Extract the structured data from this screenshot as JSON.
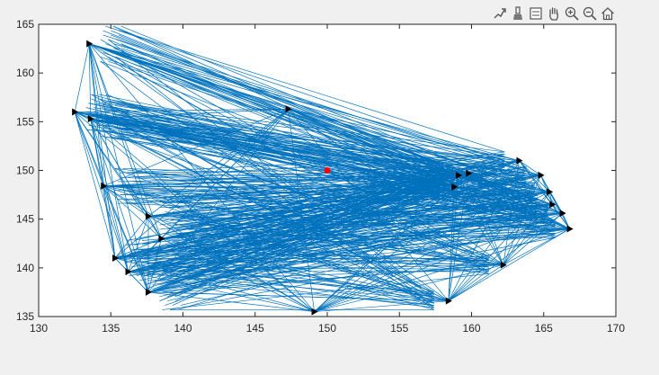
{
  "toolbar": {
    "buttons": [
      {
        "name": "export-icon"
      },
      {
        "name": "brush-icon"
      },
      {
        "name": "datatip-icon"
      },
      {
        "name": "pan-hand-icon"
      },
      {
        "name": "zoom-in-icon"
      },
      {
        "name": "zoom-out-icon"
      },
      {
        "name": "home-icon"
      }
    ]
  },
  "chart_data": {
    "type": "network-plot",
    "title": "",
    "xlabel": "",
    "ylabel": "",
    "xlim": [
      130,
      170
    ],
    "ylim": [
      135,
      165
    ],
    "xticks": [
      130,
      135,
      140,
      145,
      150,
      155,
      160,
      165,
      170
    ],
    "yticks": [
      135,
      140,
      145,
      150,
      155,
      160,
      165
    ],
    "grid": false,
    "line_color": "#0072BD",
    "marker_color": "#000000",
    "center_point": {
      "x": 150,
      "y": 150,
      "color": "#FF0000"
    },
    "nodes": [
      {
        "x": 133.5,
        "y": 163
      },
      {
        "x": 132.5,
        "y": 156
      },
      {
        "x": 133.6,
        "y": 155.3
      },
      {
        "x": 134.5,
        "y": 148.4
      },
      {
        "x": 135.3,
        "y": 141
      },
      {
        "x": 137.6,
        "y": 137.5
      },
      {
        "x": 136.2,
        "y": 139.6
      },
      {
        "x": 137.6,
        "y": 145.3
      },
      {
        "x": 138.5,
        "y": 143
      },
      {
        "x": 147.3,
        "y": 156.3
      },
      {
        "x": 149.1,
        "y": 135.5
      },
      {
        "x": 158.4,
        "y": 136.6
      },
      {
        "x": 159.1,
        "y": 149.5
      },
      {
        "x": 159.8,
        "y": 149.7
      },
      {
        "x": 162.2,
        "y": 140.3
      },
      {
        "x": 163.3,
        "y": 151
      },
      {
        "x": 164.8,
        "y": 149.5
      },
      {
        "x": 165.4,
        "y": 147.8
      },
      {
        "x": 165.6,
        "y": 146.5
      },
      {
        "x": 166.3,
        "y": 145.6
      },
      {
        "x": 166.8,
        "y": 144
      },
      {
        "x": 158.8,
        "y": 148.3
      }
    ]
  }
}
